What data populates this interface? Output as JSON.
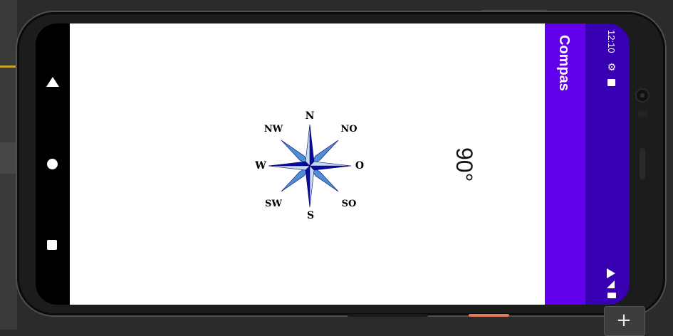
{
  "app": {
    "title": "Compas",
    "heading_degrees": "90°"
  },
  "status_bar": {
    "time": "12:10",
    "icons": [
      "gear-icon",
      "sd-card-icon",
      "wifi-icon",
      "signal-icon",
      "battery-icon"
    ]
  },
  "navigation": {
    "buttons": [
      "back",
      "home",
      "recents"
    ]
  },
  "compass": {
    "labels": {
      "n": "N",
      "ne": "NO",
      "e": "O",
      "se": "SO",
      "s": "S",
      "sw": "SW",
      "w": "W",
      "nw": "NW"
    },
    "colors": {
      "dark_blue": "#0a0a9e",
      "light_blue": "#c6dcf0",
      "medium_blue": "#4d8fd6"
    }
  },
  "colors": {
    "app_bar": "#6200ee",
    "status_bar": "#3700b3",
    "content_background": "#ffffff"
  },
  "ide": {
    "add_button_label": "+"
  }
}
